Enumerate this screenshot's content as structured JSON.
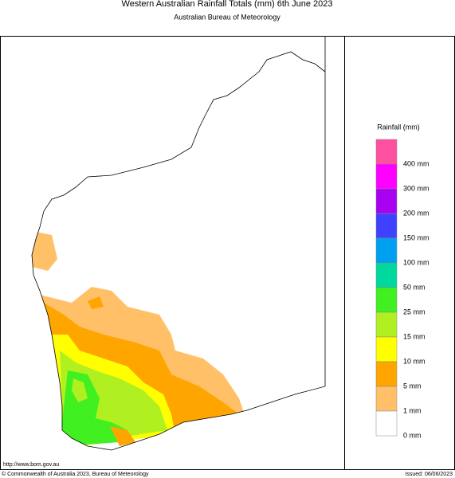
{
  "title": "Western Australian Rainfall Totals (mm) 6th June 2023",
  "subtitle": "Australian Bureau of Meteorology",
  "legend": {
    "title": "Rainfall (mm)",
    "items": [
      {
        "label": "400 mm",
        "color": "#ff4fa0"
      },
      {
        "label": "300 mm",
        "color": "#ff00ff"
      },
      {
        "label": "200 mm",
        "color": "#a800f0"
      },
      {
        "label": "150 mm",
        "color": "#4040ff"
      },
      {
        "label": "100 mm",
        "color": "#00a0f0"
      },
      {
        "label": "50 mm",
        "color": "#00d8a0"
      },
      {
        "label": "25 mm",
        "color": "#40f020"
      },
      {
        "label": "15 mm",
        "color": "#b0f020"
      },
      {
        "label": "10 mm",
        "color": "#ffff00"
      },
      {
        "label": "5 mm",
        "color": "#ffa500"
      },
      {
        "label": "1 mm",
        "color": "#ffc068"
      },
      {
        "label": "0 mm",
        "color": "#ffffff"
      }
    ]
  },
  "footer": {
    "url": "http://www.bom.gov.au",
    "copyright": "© Commonwealth of Australia 2023, Bureau of Meteorology",
    "issued": "Issued: 06/06/2023"
  }
}
